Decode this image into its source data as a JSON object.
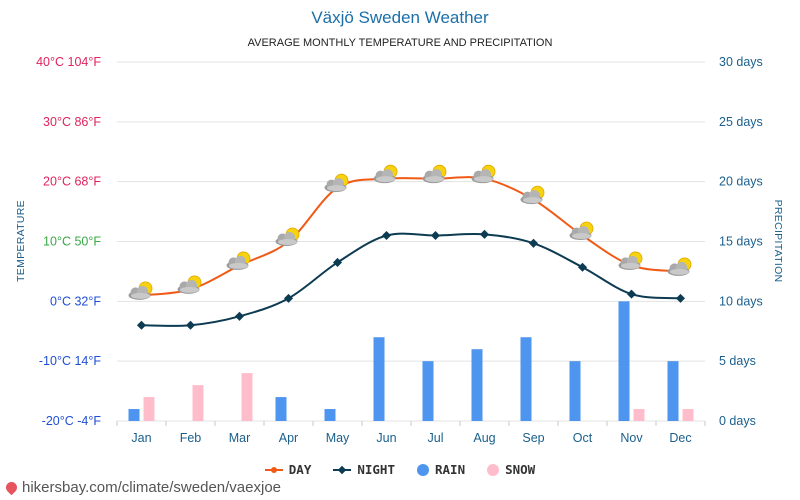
{
  "chart_data": {
    "type": "line+bar",
    "title": "Växjö Sweden Weather",
    "subtitle": "AVERAGE MONTHLY TEMPERATURE AND PRECIPITATION",
    "ylabel_left": "TEMPERATURE",
    "ylabel_right": "PRECIPITATION",
    "categories": [
      "Jan",
      "Feb",
      "Mar",
      "Apr",
      "May",
      "Jun",
      "Jul",
      "Aug",
      "Sep",
      "Oct",
      "Nov",
      "Dec"
    ],
    "left_axis": {
      "ylim": [
        -20,
        40
      ],
      "ticks": [
        {
          "value": 40,
          "label": "40°C 104°F",
          "color": "#e0245e"
        },
        {
          "value": 30,
          "label": "30°C 86°F",
          "color": "#e0245e"
        },
        {
          "value": 20,
          "label": "20°C 68°F",
          "color": "#e0245e"
        },
        {
          "value": 10,
          "label": "10°C 50°F",
          "color": "#3aa845"
        },
        {
          "value": 0,
          "label": "0°C 32°F",
          "color": "#1f4fd6"
        },
        {
          "value": -10,
          "label": "-10°C 14°F",
          "color": "#1f4fd6"
        },
        {
          "value": -20,
          "label": "-20°C -4°F",
          "color": "#1f4fd6"
        }
      ]
    },
    "right_axis": {
      "ylim": [
        0,
        30
      ],
      "ticks": [
        {
          "value": 30,
          "label": "30 days"
        },
        {
          "value": 25,
          "label": "25 days"
        },
        {
          "value": 20,
          "label": "20 days"
        },
        {
          "value": 15,
          "label": "15 days"
        },
        {
          "value": 10,
          "label": "10 days"
        },
        {
          "value": 5,
          "label": "5 days"
        },
        {
          "value": 0,
          "label": "0 days"
        }
      ]
    },
    "series": [
      {
        "name": "DAY",
        "type": "line",
        "axis": "left",
        "color": "#f05a16",
        "values": [
          1,
          2,
          6,
          10,
          19,
          20.5,
          20.5,
          20.5,
          17,
          11,
          6,
          5
        ]
      },
      {
        "name": "NIGHT",
        "type": "line",
        "axis": "left",
        "color": "#0d3b52",
        "values": [
          -4,
          -4,
          -2.5,
          0.5,
          6.5,
          11,
          11,
          11.2,
          9.7,
          5.7,
          1.2,
          0.5
        ]
      },
      {
        "name": "RAIN",
        "type": "bar",
        "axis": "right",
        "color": "#4e95ef",
        "values": [
          1,
          0,
          0,
          2,
          1,
          7,
          5,
          6,
          7,
          5,
          10,
          5
        ]
      },
      {
        "name": "SNOW",
        "type": "bar",
        "axis": "right",
        "color": "#ffbdcb",
        "values": [
          2,
          3,
          4,
          0,
          0,
          0,
          0,
          0,
          0,
          0,
          1,
          1
        ]
      }
    ]
  },
  "legend": {
    "day": "DAY",
    "night": "NIGHT",
    "rain": "RAIN",
    "snow": "SNOW"
  },
  "colors": {
    "day": "#f05a16",
    "night": "#0d3b52",
    "rain": "#4e95ef",
    "snow": "#ffbdcb"
  },
  "watermark": "hikersbay.com/climate/sweden/vaexjoe"
}
